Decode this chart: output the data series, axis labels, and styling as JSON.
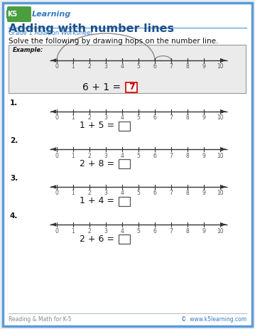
{
  "title": "Adding with number lines",
  "subtitle": "Grade 1 Addition Worksheet",
  "instruction": "Solve the following by drawing hops on the number line.",
  "example_label": "Example:",
  "example_equation": "6 + 1 = ",
  "example_answer": "7",
  "problems": [
    {
      "number": "1.",
      "equation": "1 + 5 = "
    },
    {
      "number": "2.",
      "equation": "2 + 8 = "
    },
    {
      "number": "3.",
      "equation": "1 + 4 = "
    },
    {
      "number": "4.",
      "equation": "2 + 6 = "
    }
  ],
  "page_bg": "#e8eef5",
  "content_bg": "#ffffff",
  "border_color": "#5b9bd5",
  "title_color": "#1a4f8a",
  "subtitle_color": "#3a7abf",
  "line_color": "#333333",
  "example_bg": "#ebebeb",
  "example_border": "#999999",
  "logo_green": "#4a9e3f",
  "logo_blue": "#3a7abf",
  "answer_color": "#cc0000",
  "tick_label_color": "#555555",
  "number_line_ticks": [
    0,
    1,
    2,
    3,
    4,
    5,
    6,
    7,
    8,
    9,
    10
  ],
  "footer_left": "Reading & Math for K-5",
  "footer_right": "©  www.k5learning.com"
}
